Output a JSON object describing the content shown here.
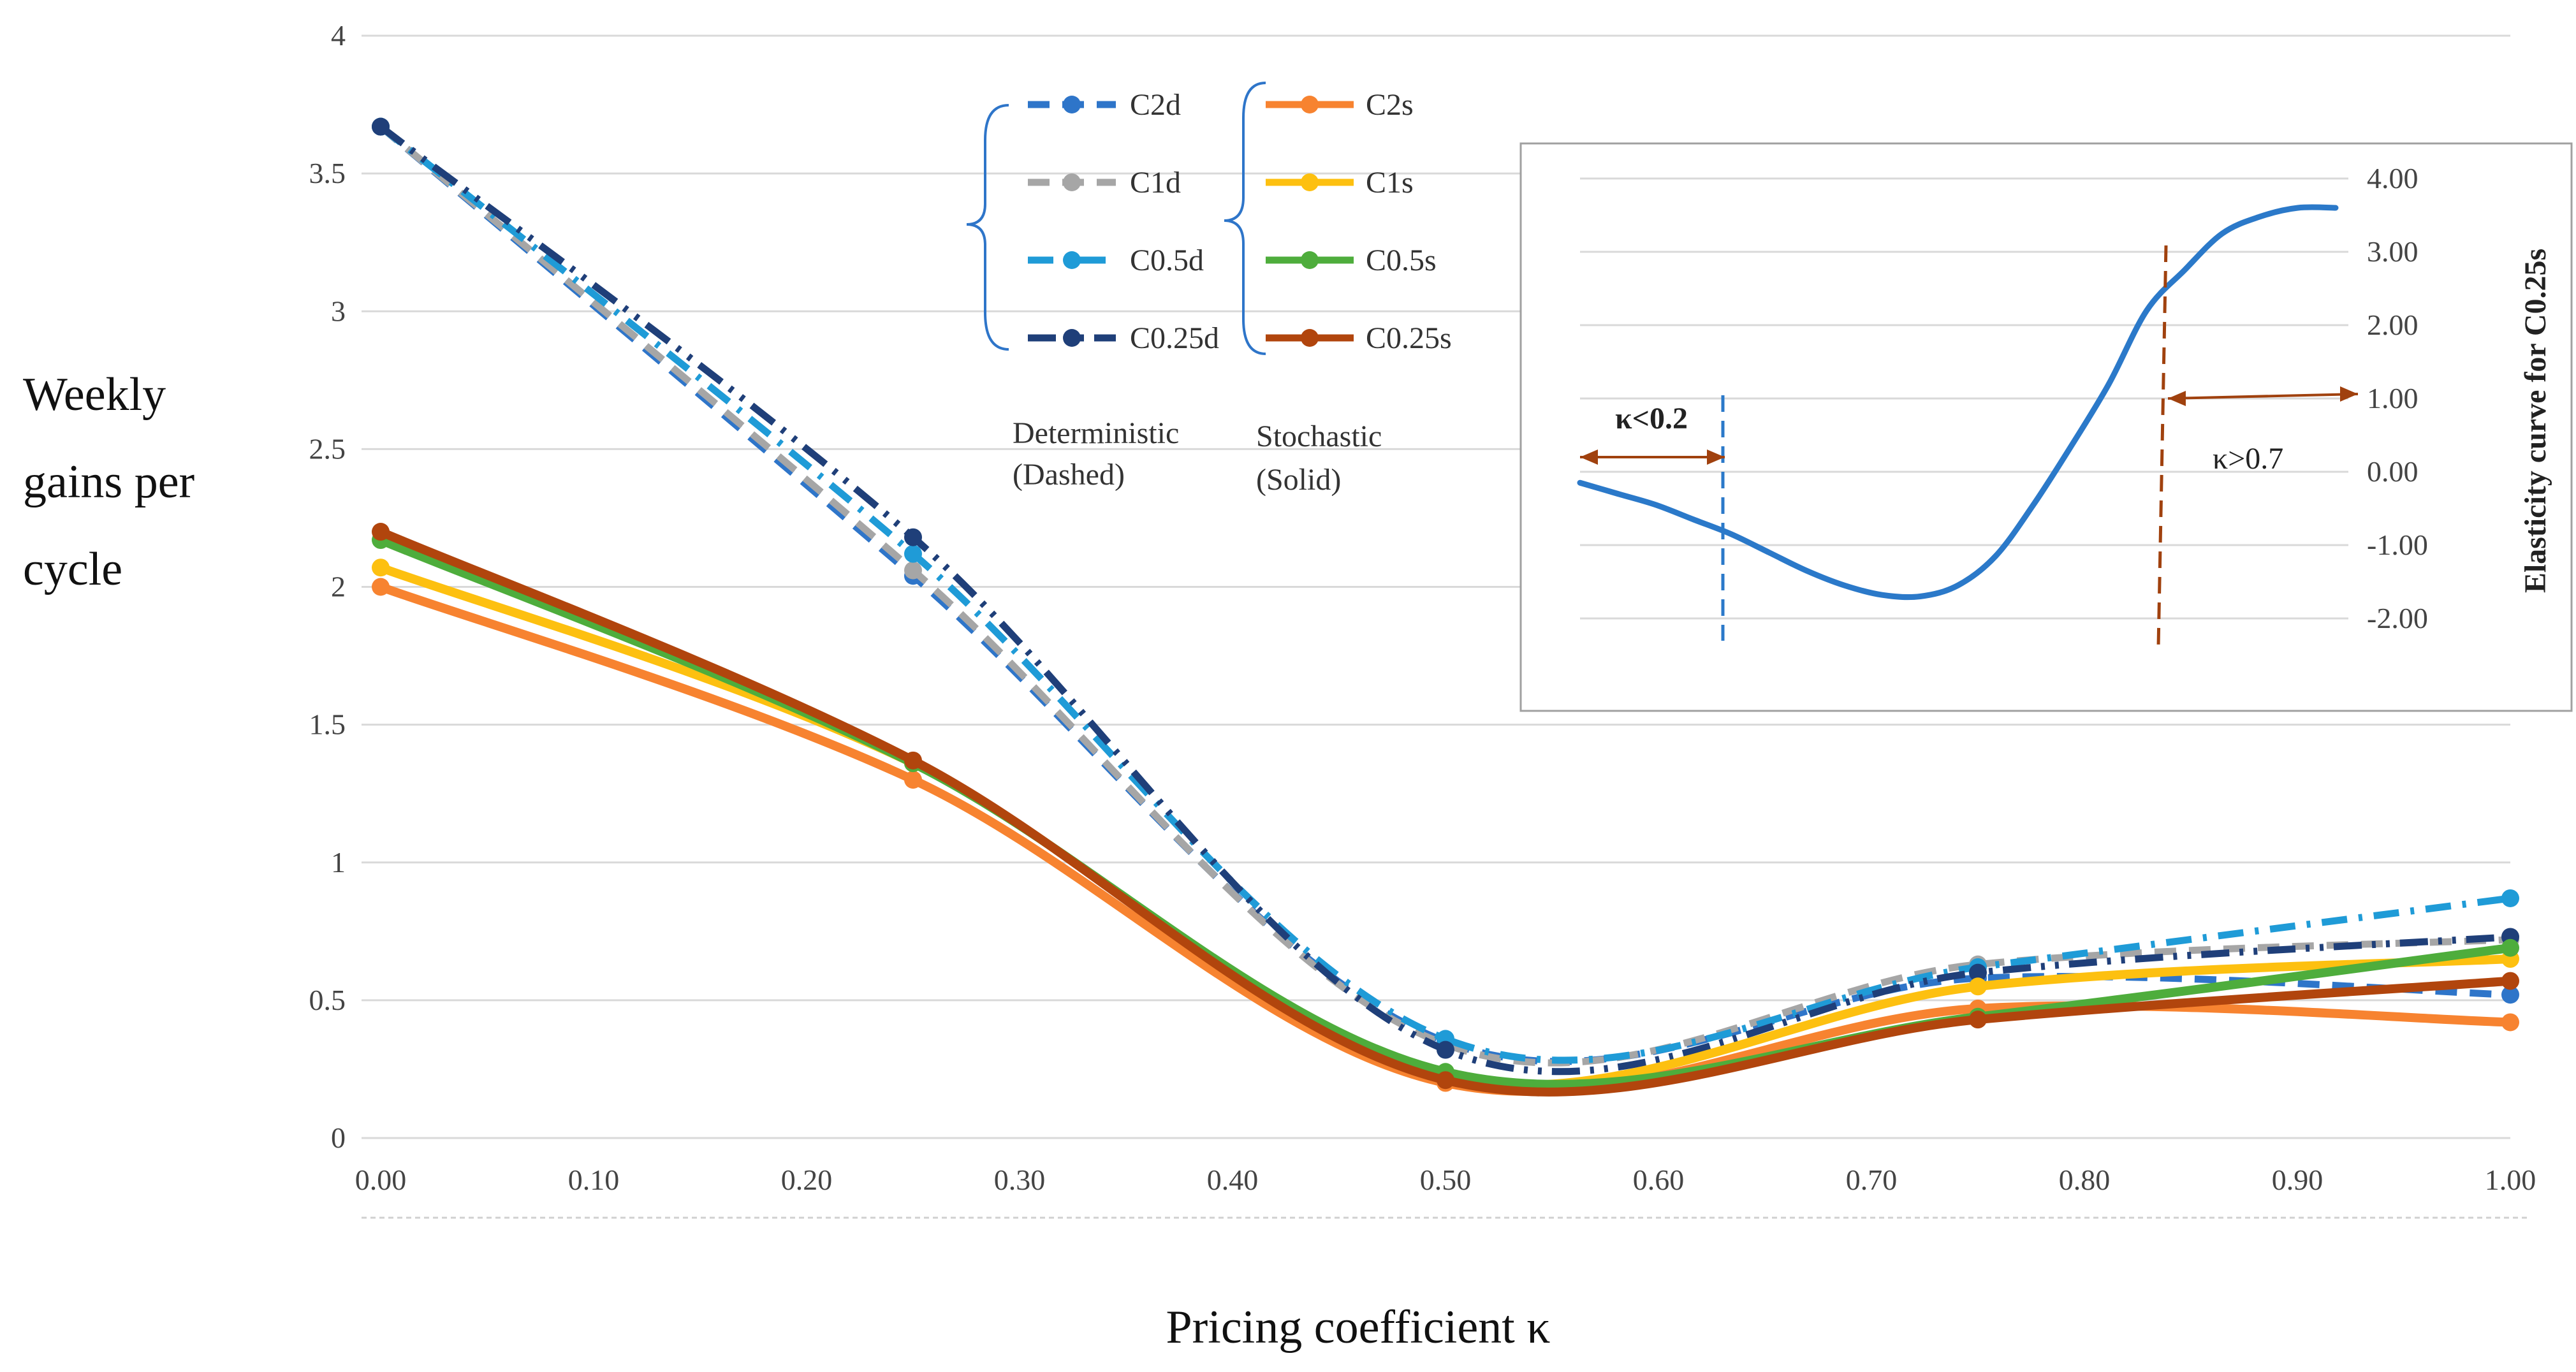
{
  "chart_data": {
    "type": "line",
    "title": "",
    "xlabel": "Pricing coefficient κ",
    "ylabel_lines": [
      "Weekly",
      "gains  per",
      "cycle"
    ],
    "x": [
      0.0,
      0.25,
      0.5,
      0.75,
      1.0
    ],
    "xlim": [
      0,
      1
    ],
    "ylim": [
      0,
      4
    ],
    "xticks": [
      "0.00",
      "0.10",
      "0.20",
      "0.30",
      "0.40",
      "0.50",
      "0.60",
      "0.70",
      "0.80",
      "0.90",
      "1.00"
    ],
    "yticks": [
      "0",
      "0.5",
      "1",
      "1.5",
      "2",
      "2.5",
      "3",
      "3.5",
      "4"
    ],
    "series": [
      {
        "name": "C2d",
        "style": "dashed",
        "color": "#2e75c9",
        "values": [
          3.67,
          2.04,
          0.35,
          0.58,
          0.52
        ]
      },
      {
        "name": "C1d",
        "style": "dashed",
        "color": "#a6a6a6",
        "values": [
          3.67,
          2.06,
          0.34,
          0.63,
          0.72
        ]
      },
      {
        "name": "C0.5d",
        "style": "dashdot",
        "color": "#1f9bd7",
        "values": [
          3.67,
          2.12,
          0.36,
          0.62,
          0.87
        ]
      },
      {
        "name": "C0.25d",
        "style": "dashdotdot",
        "color": "#1f3f79",
        "values": [
          3.67,
          2.18,
          0.32,
          0.6,
          0.73
        ]
      },
      {
        "name": "C2s",
        "style": "solid",
        "color": "#f78330",
        "values": [
          2.0,
          1.3,
          0.2,
          0.47,
          0.42
        ]
      },
      {
        "name": "C1s",
        "style": "solid",
        "color": "#fdc010",
        "values": [
          2.07,
          1.36,
          0.22,
          0.55,
          0.65
        ]
      },
      {
        "name": "C0.5s",
        "style": "solid",
        "color": "#4ead3c",
        "values": [
          2.17,
          1.36,
          0.24,
          0.44,
          0.69
        ]
      },
      {
        "name": "C0.25s",
        "style": "solid",
        "color": "#b1450d",
        "values": [
          2.2,
          1.37,
          0.21,
          0.43,
          0.57
        ]
      }
    ],
    "legend": {
      "groups": [
        {
          "label_lines": [
            "Deterministic",
            "(Dashed)"
          ],
          "entries": [
            "C2d",
            "C1d",
            "C0.5d",
            "C0.25d"
          ]
        },
        {
          "label_lines": [
            "Stochastic",
            "(Solid)"
          ],
          "entries": [
            "C2s",
            "C1s",
            "C0.5s",
            "C0.25s"
          ]
        }
      ]
    },
    "inset": {
      "type": "line",
      "ylabel": "Elasticity curve for C0.25s",
      "ylim": [
        -2.0,
        4.0
      ],
      "yticks": [
        "4.00",
        "3.00",
        "2.00",
        "1.00",
        "0.00",
        "-1.00",
        "-2.00"
      ],
      "x": [
        0.0,
        0.05,
        0.1,
        0.15,
        0.2,
        0.25,
        0.3,
        0.35,
        0.4,
        0.45,
        0.5,
        0.55,
        0.6,
        0.65,
        0.7,
        0.75,
        0.8,
        0.85,
        0.9,
        0.95,
        1.0
      ],
      "values": [
        -0.15,
        -0.3,
        -0.45,
        -0.65,
        -0.85,
        -1.1,
        -1.35,
        -1.55,
        -1.68,
        -1.7,
        -1.55,
        -1.15,
        -0.45,
        0.35,
        1.2,
        2.2,
        2.75,
        3.25,
        3.48,
        3.6,
        3.6
      ],
      "color": "#2b79c9",
      "annotations": [
        {
          "text": "κ<0.2",
          "bold": true,
          "color": "#a0410e"
        },
        {
          "text": "κ>0.7",
          "bold": false,
          "color": "#a0410e"
        }
      ]
    }
  }
}
